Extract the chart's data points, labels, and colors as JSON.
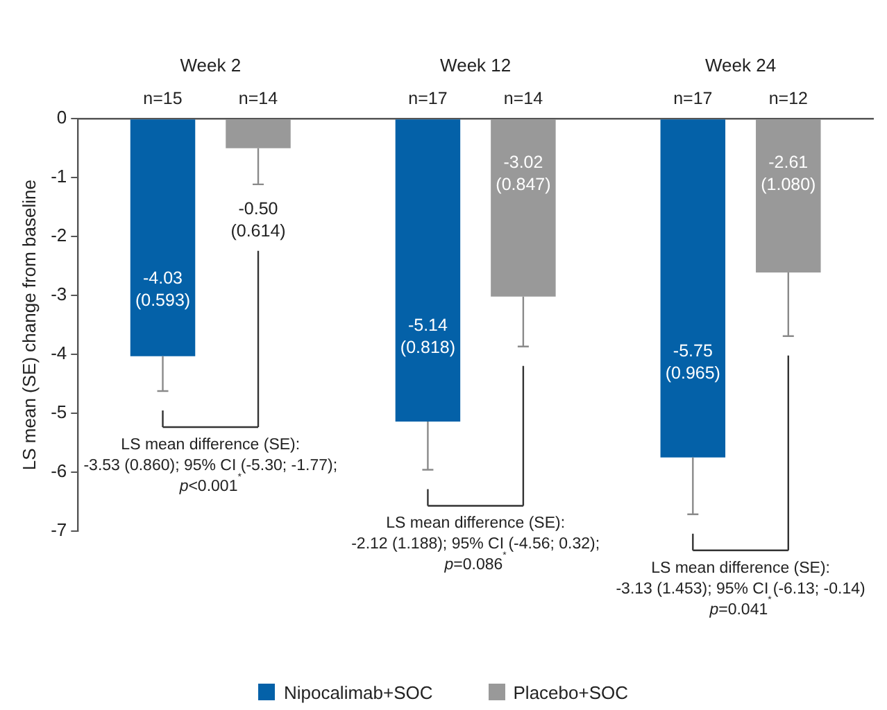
{
  "chart_data": {
    "type": "bar",
    "categories": [
      "Week 2",
      "Week 12",
      "Week 24"
    ],
    "ylabel": "LS mean (SE) change from baseline",
    "ylim": [
      -7,
      0
    ],
    "yticks": [
      0,
      -1,
      -2,
      -3,
      -4,
      -5,
      -6,
      -7
    ],
    "series": [
      {
        "name": "Nipocalimab+SOC",
        "color": "#0461a8",
        "values": [
          -4.03,
          -5.14,
          -5.75
        ],
        "errors": [
          [
            -4.623,
            -4.03
          ],
          [
            -5.958,
            -5.14
          ],
          [
            -6.715,
            -5.75
          ]
        ],
        "value_labels": [
          "-4.03\n(0.593)",
          "-5.14\n(0.818)",
          "-5.75\n(0.965)"
        ]
      },
      {
        "name": "Placebo+SOC",
        "color": "#999999",
        "values": [
          -0.5,
          -3.02,
          -2.61
        ],
        "errors": [
          [
            -1.114,
            -0.5
          ],
          [
            -3.867,
            -3.02
          ],
          [
            -3.69,
            -2.61
          ]
        ],
        "value_labels": [
          "-0.50\n(0.614)",
          "-3.02\n(0.847)",
          "-2.61\n(1.080)"
        ]
      }
    ],
    "annotations": [
      "n=15",
      "n=14",
      "n=17",
      "n=14",
      "n=17",
      "n=12",
      "LS mean difference (SE):\n-3.53 (0.860); 95% CI (-5.30; -1.77);\np<0.001$^{*}$",
      "LS mean difference (SE):\n-2.12 (1.188); 95% CI (-4.56; 0.32);\np=0.086$^{*}$",
      "LS mean difference (SE):\n-3.13 (1.453); 95% CI (-6.13; -0.14)\np=0.041$^{*}$"
    ],
    "grid": false,
    "legend": "bottom"
  }
}
